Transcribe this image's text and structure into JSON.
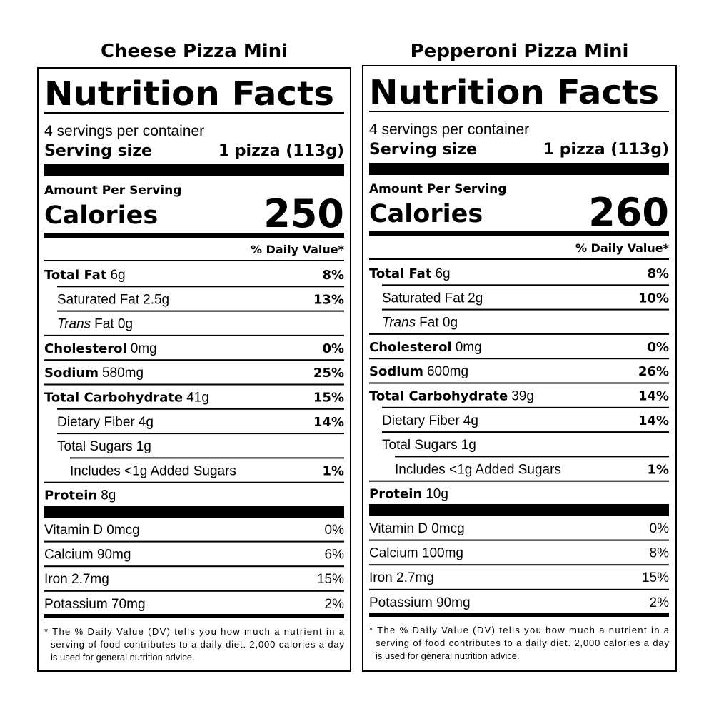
{
  "labels": [
    {
      "product": "Cheese Pizza Mini",
      "title": "Nutrition Facts",
      "servings": "4 servings per container",
      "serving_size_label": "Serving size",
      "serving_size": "1 pizza (113g)",
      "amount_label": "Amount Per Serving",
      "calories_label": "Calories",
      "calories": "250",
      "dv_header": "% Daily Value*",
      "nutrients": [
        {
          "name": "Total Fat",
          "amount": "6g",
          "dv": "8%"
        },
        {
          "name": "Saturated Fat",
          "amount": "2.5g",
          "dv": "13%"
        },
        {
          "name": "Trans",
          "amount": "Fat 0g"
        },
        {
          "name": "Cholesterol",
          "amount": "0mg",
          "dv": "0%"
        },
        {
          "name": "Sodium",
          "amount": "580mg",
          "dv": "25%"
        },
        {
          "name": "Total Carbohydrate",
          "amount": "41g",
          "dv": "15%"
        },
        {
          "name": "Dietary Fiber",
          "amount": "4g",
          "dv": "14%"
        },
        {
          "name": "Total Sugars",
          "amount": "1g"
        },
        {
          "name": "Includes <1g Added Sugars",
          "dv": "1%"
        },
        {
          "name": "Protein",
          "amount": "8g"
        }
      ],
      "vitamins": [
        {
          "name": "Vitamin D 0mcg",
          "dv": "0%"
        },
        {
          "name": "Calcium 90mg",
          "dv": "6%"
        },
        {
          "name": "Iron 2.7mg",
          "dv": "15%"
        },
        {
          "name": "Potassium 70mg",
          "dv": "2%"
        }
      ],
      "footnote": [
        "* The % Daily Value (DV) tells you how much a nutrient in a",
        "serving of food contributes to a daily diet. 2,000 calories a day",
        "is used for general nutrition advice."
      ]
    },
    {
      "product": "Pepperoni Pizza Mini",
      "title": "Nutrition Facts",
      "servings": "4 servings per container",
      "serving_size_label": "Serving size",
      "serving_size": "1 pizza (113g)",
      "amount_label": "Amount Per Serving",
      "calories_label": "Calories",
      "calories": "260",
      "dv_header": "% Daily Value*",
      "nutrients": [
        {
          "name": "Total Fat",
          "amount": "6g",
          "dv": "8%"
        },
        {
          "name": "Saturated Fat",
          "amount": "2g",
          "dv": "10%"
        },
        {
          "name": "Trans",
          "amount": "Fat 0g"
        },
        {
          "name": "Cholesterol",
          "amount": "0mg",
          "dv": "0%"
        },
        {
          "name": "Sodium",
          "amount": "600mg",
          "dv": "26%"
        },
        {
          "name": "Total Carbohydrate",
          "amount": "39g",
          "dv": "14%"
        },
        {
          "name": "Dietary Fiber",
          "amount": "4g",
          "dv": "14%"
        },
        {
          "name": "Total Sugars",
          "amount": "1g"
        },
        {
          "name": "Includes <1g Added Sugars",
          "dv": "1%"
        },
        {
          "name": "Protein",
          "amount": "10g"
        }
      ],
      "vitamins": [
        {
          "name": "Vitamin D 0mcg",
          "dv": "0%"
        },
        {
          "name": "Calcium 100mg",
          "dv": "8%"
        },
        {
          "name": "Iron 2.7mg",
          "dv": "15%"
        },
        {
          "name": "Potassium 90mg",
          "dv": "2%"
        }
      ],
      "footnote": [
        "* The % Daily Value (DV) tells you how much a nutrient in a",
        "serving of food contributes to a daily diet. 2,000 calories a day",
        "is used for general nutrition advice."
      ]
    }
  ]
}
